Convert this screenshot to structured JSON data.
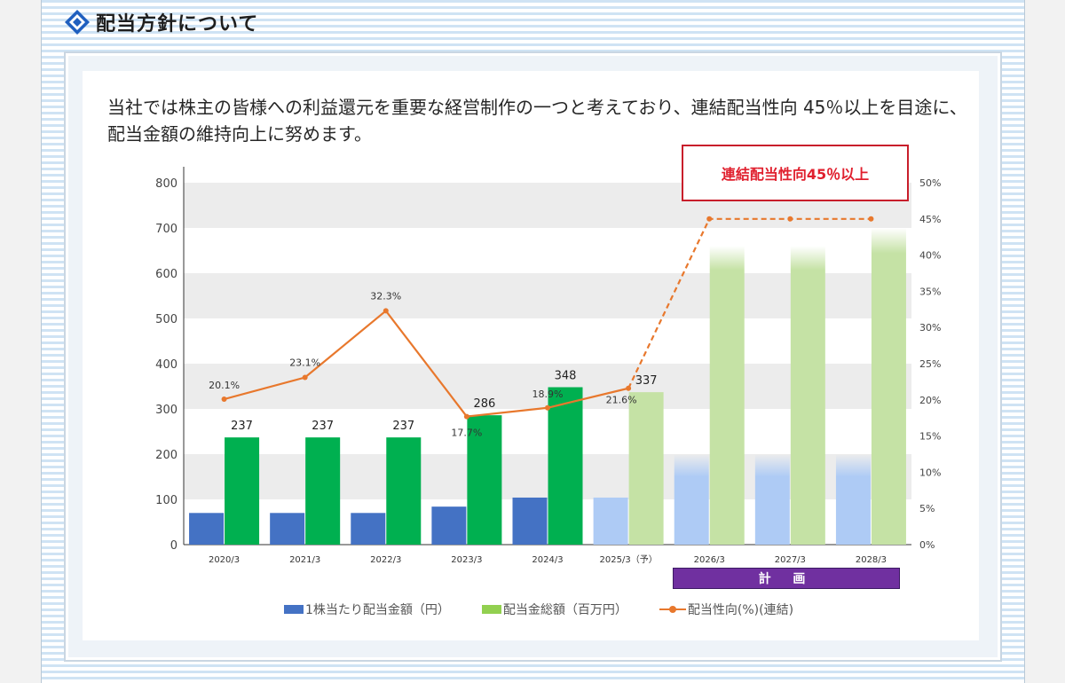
{
  "heading": {
    "title": "配当方針について"
  },
  "intro": "当社では株主の皆様への利益還元を重要な経営制作の一つと考えており、連結配当性向 45％以上を目途に、配当金額の維持向上に努めます。",
  "callout": "連結配当性向45％以上",
  "plan_label": "計 画",
  "colors": {
    "per_share": "#4472c4",
    "per_share_forecast": "#aecbf5",
    "total": "#00b050",
    "total_forecast": "#c5e2a5",
    "payout": "#e8782d",
    "band": "#ececec",
    "callout_border": "#c81e2b",
    "plan": "#7030a0"
  },
  "chart_data": {
    "type": "bar",
    "categories": [
      "2020/3",
      "2021/3",
      "2022/3",
      "2023/3",
      "2024/3",
      "2025/3（予）",
      "2026/3",
      "2027/3",
      "2028/3"
    ],
    "series": [
      {
        "name": "1株当たり配当金額（円）",
        "type": "bar",
        "axis": "left",
        "values": [
          70,
          70,
          70,
          84,
          104,
          104,
          200,
          200,
          200
        ]
      },
      {
        "name": "配当金総額（百万円）",
        "type": "bar",
        "axis": "left",
        "values": [
          237,
          237,
          237,
          286,
          348,
          337,
          660,
          660,
          700
        ],
        "labels": [
          "237",
          "237",
          "237",
          "286",
          "348",
          "337",
          "",
          "",
          ""
        ]
      },
      {
        "name": "配当性向(%)(連結)",
        "type": "line",
        "axis": "right",
        "values": [
          20.1,
          23.1,
          32.3,
          17.7,
          18.9,
          21.6,
          45,
          45,
          45
        ],
        "labels": [
          "20.1%",
          "23.1%",
          "32.3%",
          "17.7%",
          "18.9%",
          "21.6%",
          "",
          "",
          ""
        ]
      }
    ],
    "forecast_from_index": 5,
    "plan_from_index": 6,
    "y_left": {
      "ylim": [
        0,
        800
      ],
      "ticks": [
        "0",
        "100",
        "200",
        "300",
        "400",
        "500",
        "600",
        "700",
        "800"
      ]
    },
    "y_right": {
      "ylim": [
        0,
        50
      ],
      "ticks": [
        "0%",
        "5%",
        "10%",
        "15%",
        "20%",
        "25%",
        "30%",
        "35%",
        "40%",
        "45%",
        "50%"
      ]
    },
    "legend_position": "bottom",
    "grid": "alternating bands"
  }
}
